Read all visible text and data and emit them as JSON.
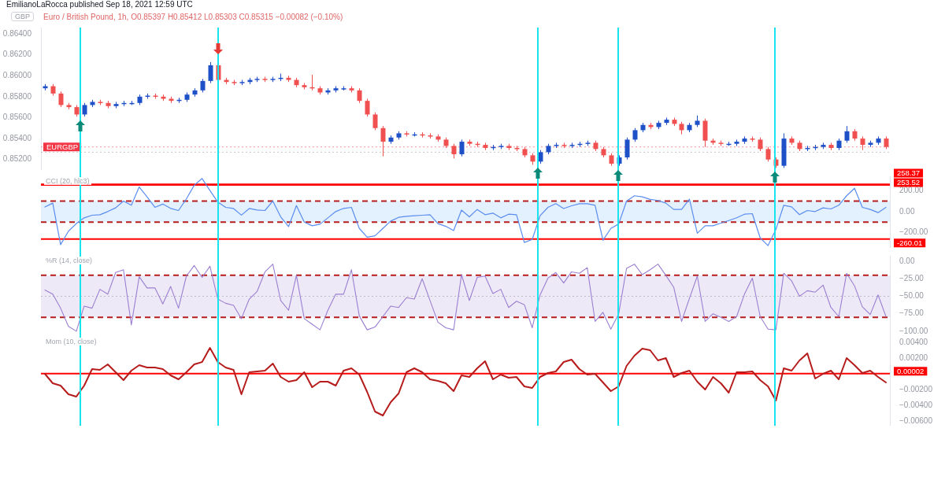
{
  "chart_data": [
    {
      "type": "candlestick",
      "title": "EmilianoLaRocca published Sep 18, 2021 12:59 UTC",
      "subtitle": "Euro / British Pound, 1h, O0.85397 H0.85412 L0.85303 C0.85315 −0.00082 (−0.10%)",
      "annotations": [
        "GBP"
      ],
      "tick_labels": "y",
      "legend": false,
      "ylim": [
        0.851,
        0.8646
      ],
      "yticks": [
        {
          "value": 0.852,
          "label": "0.85200"
        },
        {
          "value": 0.854,
          "label": "0.85400"
        },
        {
          "value": 0.856,
          "label": "0.85600"
        },
        {
          "value": 0.858,
          "label": "0.85800"
        },
        {
          "value": 0.86,
          "label": "0.86000"
        },
        {
          "value": 0.862,
          "label": "0.86200"
        },
        {
          "value": 0.864,
          "label": "0.86400"
        }
      ],
      "categories": [
        null,
        null,
        null,
        null,
        null,
        null,
        null,
        null,
        null,
        null,
        null,
        null,
        null,
        null,
        null,
        null,
        null,
        null,
        null,
        null,
        null,
        null,
        null,
        null,
        null,
        null,
        null,
        null,
        null,
        null,
        null,
        null,
        null,
        null,
        null,
        null,
        null,
        null,
        null,
        null,
        null,
        null,
        null,
        null,
        null,
        null,
        null,
        null,
        null,
        null,
        null,
        null,
        null,
        null,
        null,
        null,
        null,
        null,
        null,
        null,
        null,
        null,
        null,
        null,
        null,
        null,
        null,
        null,
        null,
        null,
        null,
        null,
        null,
        null,
        null,
        null,
        null,
        null,
        null,
        null,
        null,
        null,
        null,
        null,
        null,
        null,
        null,
        null,
        null,
        null,
        null,
        null,
        null,
        null,
        null,
        null,
        null,
        null,
        null,
        null,
        null,
        null,
        null,
        null,
        null,
        null,
        null,
        null
      ],
      "ohlc": [
        [
          0.8588,
          0.8592,
          0.8586,
          0.859
        ],
        [
          0.859,
          0.8592,
          0.8581,
          0.8583
        ],
        [
          0.8583,
          0.8585,
          0.857,
          0.8572
        ],
        [
          0.8572,
          0.8574,
          0.8568,
          0.857
        ],
        [
          0.857,
          0.8572,
          0.8561,
          0.8563
        ],
        [
          0.8563,
          0.8574,
          0.8561,
          0.8572
        ],
        [
          0.8572,
          0.8577,
          0.857,
          0.8575
        ],
        [
          0.8575,
          0.8577,
          0.8572,
          0.8574
        ],
        [
          0.8574,
          0.8576,
          0.8569,
          0.8571
        ],
        [
          0.8571,
          0.8575,
          0.8569,
          0.8573
        ],
        [
          0.8573,
          0.8576,
          0.8571,
          0.8574
        ],
        [
          0.8574,
          0.8576,
          0.8572,
          0.8574
        ],
        [
          0.8574,
          0.8582,
          0.8572,
          0.858
        ],
        [
          0.858,
          0.8583,
          0.8578,
          0.8581
        ],
        [
          0.8581,
          0.8583,
          0.8578,
          0.858
        ],
        [
          0.858,
          0.8582,
          0.8576,
          0.8578
        ],
        [
          0.8578,
          0.858,
          0.8574,
          0.8576
        ],
        [
          0.8576,
          0.8579,
          0.8574,
          0.8577
        ],
        [
          0.8577,
          0.8584,
          0.8575,
          0.8582
        ],
        [
          0.8582,
          0.8588,
          0.858,
          0.8586
        ],
        [
          0.8586,
          0.8597,
          0.8584,
          0.8595
        ],
        [
          0.8595,
          0.8613,
          0.8593,
          0.861
        ],
        [
          0.861,
          0.8612,
          0.8594,
          0.8596
        ],
        [
          0.8596,
          0.8598,
          0.8592,
          0.8594
        ],
        [
          0.8594,
          0.8596,
          0.8591,
          0.8593
        ],
        [
          0.8593,
          0.8596,
          0.8591,
          0.8594
        ],
        [
          0.8594,
          0.8598,
          0.8592,
          0.8596
        ],
        [
          0.8596,
          0.8599,
          0.8594,
          0.8597
        ],
        [
          0.8597,
          0.8599,
          0.8594,
          0.8596
        ],
        [
          0.8596,
          0.8599,
          0.8594,
          0.8597
        ],
        [
          0.8597,
          0.8602,
          0.8595,
          0.8598
        ],
        [
          0.8598,
          0.86,
          0.8594,
          0.8596
        ],
        [
          0.8596,
          0.8598,
          0.8589,
          0.8591
        ],
        [
          0.8591,
          0.8593,
          0.8587,
          0.8589
        ],
        [
          0.8589,
          0.8601,
          0.8586,
          0.8588
        ],
        [
          0.8588,
          0.859,
          0.8582,
          0.8584
        ],
        [
          0.8584,
          0.8588,
          0.8582,
          0.8586
        ],
        [
          0.8586,
          0.859,
          0.8584,
          0.8588
        ],
        [
          0.8588,
          0.859,
          0.8586,
          0.8588
        ],
        [
          0.8588,
          0.859,
          0.8584,
          0.8586
        ],
        [
          0.8586,
          0.8588,
          0.8574,
          0.8576
        ],
        [
          0.8576,
          0.8578,
          0.8561,
          0.8563
        ],
        [
          0.8563,
          0.8565,
          0.8548,
          0.855
        ],
        [
          0.855,
          0.8552,
          0.8523,
          0.8537
        ],
        [
          0.8537,
          0.8543,
          0.8535,
          0.8541
        ],
        [
          0.8541,
          0.8547,
          0.8539,
          0.8545
        ],
        [
          0.8545,
          0.8547,
          0.8542,
          0.8544
        ],
        [
          0.8544,
          0.8546,
          0.8542,
          0.8544
        ],
        [
          0.8544,
          0.8546,
          0.8541,
          0.8543
        ],
        [
          0.8543,
          0.8545,
          0.854,
          0.8542
        ],
        [
          0.8542,
          0.8544,
          0.8537,
          0.8539
        ],
        [
          0.8539,
          0.8541,
          0.8531,
          0.8533
        ],
        [
          0.8533,
          0.8535,
          0.8521,
          0.8525
        ],
        [
          0.8525,
          0.8539,
          0.8523,
          0.8537
        ],
        [
          0.8537,
          0.8539,
          0.8533,
          0.8535
        ],
        [
          0.8535,
          0.8537,
          0.8532,
          0.8534
        ],
        [
          0.8534,
          0.8536,
          0.8529,
          0.8531
        ],
        [
          0.8531,
          0.8534,
          0.8529,
          0.8532
        ],
        [
          0.8532,
          0.8535,
          0.853,
          0.8533
        ],
        [
          0.8533,
          0.8535,
          0.8529,
          0.8531
        ],
        [
          0.8531,
          0.8533,
          0.8528,
          0.853
        ],
        [
          0.853,
          0.8532,
          0.8522,
          0.8524
        ],
        [
          0.8524,
          0.8526,
          0.8515,
          0.8518
        ],
        [
          0.8518,
          0.8529,
          0.8516,
          0.8527
        ],
        [
          0.8527,
          0.8535,
          0.8525,
          0.8533
        ],
        [
          0.8533,
          0.8536,
          0.8531,
          0.8534
        ],
        [
          0.8534,
          0.8536,
          0.8531,
          0.8533
        ],
        [
          0.8533,
          0.8536,
          0.8531,
          0.8534
        ],
        [
          0.8534,
          0.8537,
          0.8532,
          0.8535
        ],
        [
          0.8535,
          0.8538,
          0.8533,
          0.8536
        ],
        [
          0.8536,
          0.8538,
          0.8528,
          0.853
        ],
        [
          0.853,
          0.8532,
          0.8522,
          0.8524
        ],
        [
          0.8524,
          0.8526,
          0.8514,
          0.8516
        ],
        [
          0.8516,
          0.8524,
          0.8514,
          0.8522
        ],
        [
          0.8522,
          0.8541,
          0.852,
          0.8539
        ],
        [
          0.8539,
          0.855,
          0.8537,
          0.8548
        ],
        [
          0.8548,
          0.8555,
          0.8546,
          0.8553
        ],
        [
          0.8553,
          0.8555,
          0.8549,
          0.8551
        ],
        [
          0.8551,
          0.8557,
          0.8549,
          0.8555
        ],
        [
          0.8555,
          0.856,
          0.8553,
          0.8558
        ],
        [
          0.8558,
          0.856,
          0.8552,
          0.8554
        ],
        [
          0.8554,
          0.8556,
          0.8544,
          0.8548
        ],
        [
          0.8548,
          0.8555,
          0.8546,
          0.8553
        ],
        [
          0.8553,
          0.8562,
          0.8551,
          0.8557
        ],
        [
          0.8557,
          0.8559,
          0.8532,
          0.8538
        ],
        [
          0.8538,
          0.854,
          0.8534,
          0.8536
        ],
        [
          0.8536,
          0.8538,
          0.8533,
          0.8535
        ],
        [
          0.8535,
          0.8537,
          0.8533,
          0.8535
        ],
        [
          0.8535,
          0.8539,
          0.8533,
          0.8537
        ],
        [
          0.8537,
          0.8542,
          0.8535,
          0.854
        ],
        [
          0.854,
          0.8542,
          0.8537,
          0.8539
        ],
        [
          0.8539,
          0.8541,
          0.8528,
          0.853
        ],
        [
          0.853,
          0.8532,
          0.8518,
          0.852
        ],
        [
          0.852,
          0.8522,
          0.8512,
          0.8514
        ],
        [
          0.8514,
          0.8545,
          0.8512,
          0.854
        ],
        [
          0.854,
          0.8542,
          0.8534,
          0.8536
        ],
        [
          0.8536,
          0.8538,
          0.8528,
          0.853
        ],
        [
          0.853,
          0.8533,
          0.8528,
          0.8531
        ],
        [
          0.8531,
          0.8534,
          0.8529,
          0.8532
        ],
        [
          0.8532,
          0.8536,
          0.853,
          0.8534
        ],
        [
          0.8534,
          0.8536,
          0.8529,
          0.8531
        ],
        [
          0.8531,
          0.854,
          0.8529,
          0.8538
        ],
        [
          0.8538,
          0.8552,
          0.8536,
          0.8547
        ],
        [
          0.8547,
          0.8549,
          0.8538,
          0.854
        ],
        [
          0.854,
          0.8542,
          0.8529,
          0.8534
        ],
        [
          0.8534,
          0.8538,
          0.8532,
          0.8536
        ],
        [
          0.8536,
          0.8542,
          0.8534,
          0.854
        ],
        [
          0.854,
          0.8542,
          0.853,
          0.8532
        ]
      ],
      "colors": [
        "#1e50c8",
        "#f0504f",
        "#f0504f",
        "#f0504f",
        "#f0504f",
        "#1e50c8",
        "#1e50c8",
        "#f0504f",
        "#f0504f",
        "#1e50c8",
        "#1e50c8",
        "#1e50c8",
        "#1e50c8",
        "#1e50c8",
        "#f0504f",
        "#f0504f",
        "#f0504f",
        "#1e50c8",
        "#1e50c8",
        "#1e50c8",
        "#1e50c8",
        "#1e50c8",
        "#f0504f",
        "#f0504f",
        "#f0504f",
        "#1e50c8",
        "#1e50c8",
        "#1e50c8",
        "#f0504f",
        "#1e50c8",
        "#1e50c8",
        "#f0504f",
        "#f0504f",
        "#f0504f",
        "#f0504f",
        "#f0504f",
        "#1e50c8",
        "#1e50c8",
        "#1e50c8",
        "#f0504f",
        "#f0504f",
        "#f0504f",
        "#f0504f",
        "#f0504f",
        "#1e50c8",
        "#1e50c8",
        "#f0504f",
        "#1e50c8",
        "#f0504f",
        "#f0504f",
        "#f0504f",
        "#f0504f",
        "#f0504f",
        "#1e50c8",
        "#f0504f",
        "#f0504f",
        "#f0504f",
        "#1e50c8",
        "#1e50c8",
        "#f0504f",
        "#f0504f",
        "#f0504f",
        "#f0504f",
        "#1e50c8",
        "#1e50c8",
        "#1e50c8",
        "#f0504f",
        "#1e50c8",
        "#1e50c8",
        "#1e50c8",
        "#f0504f",
        "#f0504f",
        "#f0504f",
        "#1e50c8",
        "#1e50c8",
        "#1e50c8",
        "#1e50c8",
        "#f0504f",
        "#1e50c8",
        "#1e50c8",
        "#f0504f",
        "#f0504f",
        "#1e50c8",
        "#1e50c8",
        "#f0504f",
        "#f0504f",
        "#f0504f",
        "#1e50c8",
        "#1e50c8",
        "#1e50c8",
        "#f0504f",
        "#f0504f",
        "#f0504f",
        "#f0504f",
        "#1e50c8",
        "#f0504f",
        "#f0504f",
        "#1e50c8",
        "#1e50c8",
        "#1e50c8",
        "#f0504f",
        "#1e50c8",
        "#1e50c8",
        "#f0504f",
        "#f0504f",
        "#1e50c8",
        "#1e50c8",
        "#f0504f"
      ],
      "ref_lines": [
        {
          "axis": "y",
          "value": 0.8532,
          "label": "EURGBP",
          "color": "#f23645",
          "line_style": "dotted"
        },
        {
          "axis": "y",
          "value": 0.8527,
          "color": "#9598a1",
          "line_style": "dotted"
        }
      ]
    },
    {
      "type": "line",
      "title": "CCI (20, hlc3)",
      "tick_labels": "y",
      "legend": false,
      "color": "#5b8def",
      "ylim": [
        -345,
        335
      ],
      "yticks": [
        {
          "value": -200,
          "label": "−200.00"
        },
        {
          "value": 0,
          "label": "0.00"
        },
        {
          "value": 200,
          "label": "200.00"
        }
      ],
      "categories": [
        null,
        null,
        null,
        null,
        null,
        null,
        null,
        null,
        null,
        null,
        null,
        null,
        null,
        null,
        null,
        null,
        null,
        null,
        null,
        null,
        null,
        null,
        null,
        null,
        null,
        null,
        null,
        null,
        null,
        null,
        null,
        null,
        null,
        null,
        null,
        null,
        null,
        null,
        null,
        null,
        null,
        null,
        null,
        null,
        null,
        null,
        null,
        null,
        null,
        null,
        null,
        null,
        null,
        null,
        null,
        null,
        null,
        null,
        null,
        null,
        null,
        null,
        null,
        null,
        null,
        null,
        null,
        null,
        null,
        null,
        null,
        null,
        null,
        null,
        null,
        null,
        null,
        null,
        null,
        null,
        null,
        null,
        null,
        null,
        null,
        null,
        null,
        null,
        null,
        null,
        null,
        null,
        null,
        null,
        null,
        null,
        null,
        null,
        null,
        null,
        null,
        null,
        null,
        null,
        null,
        null,
        null,
        null
      ],
      "values": [
        43,
        80,
        -314,
        -186,
        -114,
        -60,
        -35,
        -30,
        0,
        35,
        100,
        60,
        234,
        140,
        40,
        71,
        30,
        10,
        120,
        250,
        314,
        200,
        90,
        40,
        29,
        -34,
        29,
        15,
        10,
        100,
        -50,
        -143,
        57,
        -100,
        -135,
        -120,
        -60,
        0,
        30,
        40,
        -160,
        -243,
        -230,
        -160,
        -90,
        -55,
        -45,
        -40,
        -35,
        -30,
        -114,
        -140,
        -180,
        14,
        -50,
        20,
        -30,
        -15,
        -60,
        -25,
        -30,
        -294,
        -265,
        -40,
        40,
        75,
        29,
        55,
        74,
        74,
        60,
        -273,
        -160,
        -118,
        100,
        150,
        140,
        115,
        105,
        80,
        20,
        20,
        118,
        -206,
        -135,
        -135,
        -110,
        -85,
        -59,
        -25,
        -20,
        -250,
        -323,
        -170,
        60,
        44,
        -29,
        10,
        0,
        35,
        25,
        60,
        150,
        221,
        40,
        20,
        -10,
        40
      ],
      "bands": [
        {
          "axis": "y",
          "from": -100,
          "to": 100,
          "color": "#e3f0fd"
        }
      ],
      "ref_lines": [
        {
          "axis": "y",
          "value": 258.37,
          "label": "258.37",
          "color": "#ff0000"
        },
        {
          "axis": "y",
          "value": 253.52,
          "label": "253.52",
          "color": "#ff0000"
        },
        {
          "axis": "y",
          "value": -260.01,
          "label": "-260.01",
          "color": "#ff0000"
        },
        {
          "axis": "y",
          "value": 100,
          "color": "#b71c1c",
          "line_style": "dashed"
        },
        {
          "axis": "y",
          "value": -100,
          "color": "#b71c1c",
          "line_style": "dashed"
        }
      ]
    },
    {
      "type": "line",
      "title": "%R (14, close)",
      "tick_labels": "y",
      "legend": false,
      "color": "#9a7fd1",
      "ylim": [
        -108,
        8
      ],
      "yticks": [
        {
          "value": -100,
          "label": "−100.00"
        },
        {
          "value": -75,
          "label": "−75.00"
        },
        {
          "value": -50,
          "label": "−50.00"
        },
        {
          "value": -25,
          "label": "−25.00"
        },
        {
          "value": 0,
          "label": "0.00"
        }
      ],
      "categories": [
        null,
        null,
        null,
        null,
        null,
        null,
        null,
        null,
        null,
        null,
        null,
        null,
        null,
        null,
        null,
        null,
        null,
        null,
        null,
        null,
        null,
        null,
        null,
        null,
        null,
        null,
        null,
        null,
        null,
        null,
        null,
        null,
        null,
        null,
        null,
        null,
        null,
        null,
        null,
        null,
        null,
        null,
        null,
        null,
        null,
        null,
        null,
        null,
        null,
        null,
        null,
        null,
        null,
        null,
        null,
        null,
        null,
        null,
        null,
        null,
        null,
        null,
        null,
        null,
        null,
        null,
        null,
        null,
        null,
        null,
        null,
        null,
        null,
        null,
        null,
        null,
        null,
        null,
        null,
        null,
        null,
        null,
        null,
        null,
        null,
        null,
        null,
        null,
        null,
        null,
        null,
        null,
        null,
        null,
        null,
        null,
        null,
        null,
        null,
        null,
        null,
        null,
        null,
        null,
        null,
        null,
        null,
        null
      ],
      "values": [
        -41,
        -47,
        -67,
        -93,
        -100,
        -64,
        -67,
        -40,
        -47,
        -16,
        -12,
        -91,
        -22,
        -38,
        -38,
        -61,
        -36,
        -67,
        -21,
        -6,
        -23,
        -7,
        -54,
        -60,
        -63,
        -82,
        -54,
        -43,
        -15,
        -4,
        -56,
        -70,
        -20,
        -82,
        -90,
        -98,
        -70,
        -47,
        -47,
        -12,
        -78,
        -98,
        -94,
        -79,
        -64,
        -66,
        -52,
        -54,
        -25,
        -56,
        -87,
        -95,
        -98,
        -19,
        -56,
        -23,
        -21,
        -46,
        -40,
        -66,
        -57,
        -62,
        -95,
        -48,
        -24,
        -16,
        -31,
        -15,
        -17,
        -9,
        -86,
        -73,
        -97,
        -75,
        -10,
        -4,
        -19,
        -12,
        -4,
        -20,
        -37,
        -86,
        -53,
        -21,
        -86,
        -75,
        -80,
        -86,
        -79,
        -47,
        -24,
        -79,
        -97,
        -98,
        -17,
        -28,
        -50,
        -42,
        -44,
        -34,
        -66,
        -79,
        -17,
        -35,
        -65,
        -76,
        -48,
        -79
      ],
      "bands": [
        {
          "axis": "y",
          "from": -80,
          "to": -20,
          "color": "#eee9f7"
        }
      ],
      "ref_lines": [
        {
          "axis": "y",
          "value": -20,
          "color": "#b71c1c",
          "line_style": "dashed"
        },
        {
          "axis": "y",
          "value": -50,
          "color": "#9598a1",
          "line_style": "dotted"
        },
        {
          "axis": "y",
          "value": -80,
          "color": "#b71c1c",
          "line_style": "dashed"
        }
      ]
    },
    {
      "type": "line",
      "title": "Mom (10, close)",
      "tick_labels": "y",
      "legend": false,
      "color": "#b71c1c",
      "ylim": [
        -0.0066,
        0.0047
      ],
      "yticks": [
        {
          "value": -0.006,
          "label": "−0.00600"
        },
        {
          "value": -0.004,
          "label": "−0.00400"
        },
        {
          "value": -0.002,
          "label": "−0.00200"
        },
        {
          "value": 0.002,
          "label": "0.00200"
        },
        {
          "value": 0.004,
          "label": "0.00400"
        }
      ],
      "categories": [
        null,
        null,
        null,
        null,
        null,
        null,
        null,
        null,
        null,
        null,
        null,
        null,
        null,
        null,
        null,
        null,
        null,
        null,
        null,
        null,
        null,
        null,
        null,
        null,
        null,
        null,
        null,
        null,
        null,
        null,
        null,
        null,
        null,
        null,
        null,
        null,
        null,
        null,
        null,
        null,
        null,
        null,
        null,
        null,
        null,
        null,
        null,
        null,
        null,
        null,
        null,
        null,
        null,
        null,
        null,
        null,
        null,
        null,
        null,
        null,
        null,
        null,
        null,
        null,
        null,
        null,
        null,
        null,
        null,
        null,
        null,
        null,
        null,
        null,
        null,
        null,
        null,
        null,
        null,
        null,
        null,
        null,
        null,
        null,
        null,
        null,
        null,
        null,
        null,
        null,
        null,
        null,
        null,
        null,
        null,
        null,
        null,
        null,
        null,
        null,
        null,
        null,
        null,
        null,
        null,
        null,
        null,
        null
      ],
      "values": [
        0,
        -0.0012,
        -0.0015,
        -0.0026,
        -0.0029,
        -0.0015,
        0.0006,
        0.0005,
        0.0012,
        0.0002,
        -0.0008,
        0.0004,
        0.0011,
        0.0008,
        0.0008,
        0.0006,
        -0.0002,
        -0.0007,
        0.0002,
        0.0012,
        0.0015,
        0.0033,
        0.0015,
        0.0008,
        0.0005,
        -0.0026,
        0.0002,
        0.0003,
        0.0004,
        0.0013,
        -0.0004,
        -0.001,
        -0.0008,
        0.0002,
        -0.0017,
        -0.001,
        -0.001,
        -0.0015,
        0.0004,
        0.0007,
        -0.0001,
        -0.0023,
        -0.0048,
        -0.0053,
        -0.0036,
        -0.0025,
        0.0002,
        0.0007,
        0.0002,
        -0.0007,
        -0.0009,
        -0.0012,
        -0.0022,
        -0.0002,
        -0.0004,
        0.0007,
        0.0016,
        -0.0007,
        -0.0001,
        -0.0005,
        -0.0004,
        -0.0016,
        -0.0018,
        -0.0004,
        0.0001,
        0.0003,
        0.0015,
        0.0018,
        0.0006,
        -0.0001,
        0,
        -0.0011,
        -0.0022,
        -0.0016,
        0.001,
        0.0023,
        0.0032,
        0.003,
        0.0017,
        0.002,
        -0.0004,
        0.0001,
        0.0004,
        -0.001,
        -0.002,
        -0.0004,
        -0.0012,
        -0.0024,
        0.0002,
        0.0002,
        0.0003,
        -0.0008,
        -0.0016,
        -0.0034,
        0.0007,
        0.0004,
        0.0017,
        0.0026,
        -0.0006,
        0,
        0.0004,
        -0.0007,
        0.002,
        0.0011,
        0.0001,
        0.0004,
        -0.0004,
        -0.0011
      ],
      "ref_lines": [
        {
          "axis": "y",
          "value": 2e-05,
          "label": "0.00002",
          "color": "#ff0000"
        }
      ]
    }
  ]
}
